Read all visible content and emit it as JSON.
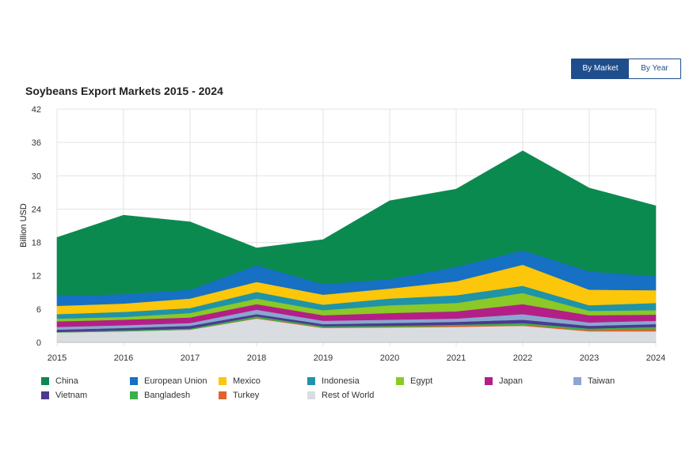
{
  "toggle": {
    "by_market": "By Market",
    "by_year": "By Year"
  },
  "chart_data": {
    "type": "area",
    "stacked": true,
    "title": "Soybeans Export Markets 2015 - 2024",
    "xlabel": "",
    "ylabel": "Billion USD",
    "x": [
      "2015",
      "2016",
      "2017",
      "2018",
      "2019",
      "2020",
      "2021",
      "2022",
      "2023",
      "2024"
    ],
    "ylim": [
      0,
      42
    ],
    "yticks": [
      0,
      6,
      12,
      18,
      24,
      30,
      36,
      42
    ],
    "grid": true,
    "legend": "bottom",
    "series": [
      {
        "name": "Rest of World",
        "color": "#d9dce0",
        "values": [
          1.8,
          2.0,
          2.3,
          4.3,
          2.6,
          2.7,
          2.8,
          3.0,
          2.0,
          2.0
        ]
      },
      {
        "name": "Turkey",
        "color": "#e0622c",
        "values": [
          0.0,
          0.0,
          0.0,
          0.1,
          0.1,
          0.1,
          0.2,
          0.2,
          0.2,
          0.5
        ]
      },
      {
        "name": "Bangladesh",
        "color": "#3eae4b",
        "values": [
          0.1,
          0.2,
          0.2,
          0.3,
          0.2,
          0.2,
          0.2,
          0.3,
          0.3,
          0.3
        ]
      },
      {
        "name": "Vietnam",
        "color": "#4b3a8f",
        "values": [
          0.4,
          0.4,
          0.5,
          0.4,
          0.4,
          0.5,
          0.5,
          0.6,
          0.5,
          0.5
        ]
      },
      {
        "name": "Taiwan",
        "color": "#8aa6cf",
        "values": [
          0.5,
          0.5,
          0.5,
          0.8,
          0.6,
          0.6,
          0.6,
          1.0,
          0.6,
          0.6
        ]
      },
      {
        "name": "Japan",
        "color": "#b31f87",
        "values": [
          1.0,
          1.0,
          1.0,
          1.0,
          1.0,
          1.2,
          1.3,
          1.8,
          1.3,
          1.1
        ]
      },
      {
        "name": "Egypt",
        "color": "#8ac926",
        "values": [
          0.5,
          0.5,
          0.8,
          1.0,
          0.9,
          1.4,
          1.5,
          2.0,
          0.8,
          0.8
        ]
      },
      {
        "name": "Indonesia",
        "color": "#1f93a8",
        "values": [
          0.8,
          0.9,
          0.9,
          1.2,
          1.0,
          1.2,
          1.4,
          1.3,
          1.0,
          1.3
        ]
      },
      {
        "name": "Mexico",
        "color": "#fcc60a",
        "values": [
          1.5,
          1.5,
          1.7,
          1.8,
          1.8,
          1.8,
          2.5,
          3.8,
          2.8,
          2.3
        ]
      },
      {
        "name": "European Union",
        "color": "#1670c4",
        "values": [
          1.8,
          1.7,
          1.6,
          3.0,
          1.9,
          1.7,
          2.6,
          2.6,
          3.3,
          2.5
        ]
      },
      {
        "name": "China",
        "color": "#0b8a4f",
        "values": [
          10.5,
          14.2,
          12.2,
          3.1,
          8.0,
          14.1,
          14.0,
          17.9,
          15.0,
          12.7
        ]
      }
    ]
  },
  "legend_order": [
    "China",
    "European Union",
    "Mexico",
    "Indonesia",
    "Egypt",
    "Japan",
    "Taiwan",
    "Vietnam",
    "Bangladesh",
    "Turkey",
    "Rest of World"
  ]
}
